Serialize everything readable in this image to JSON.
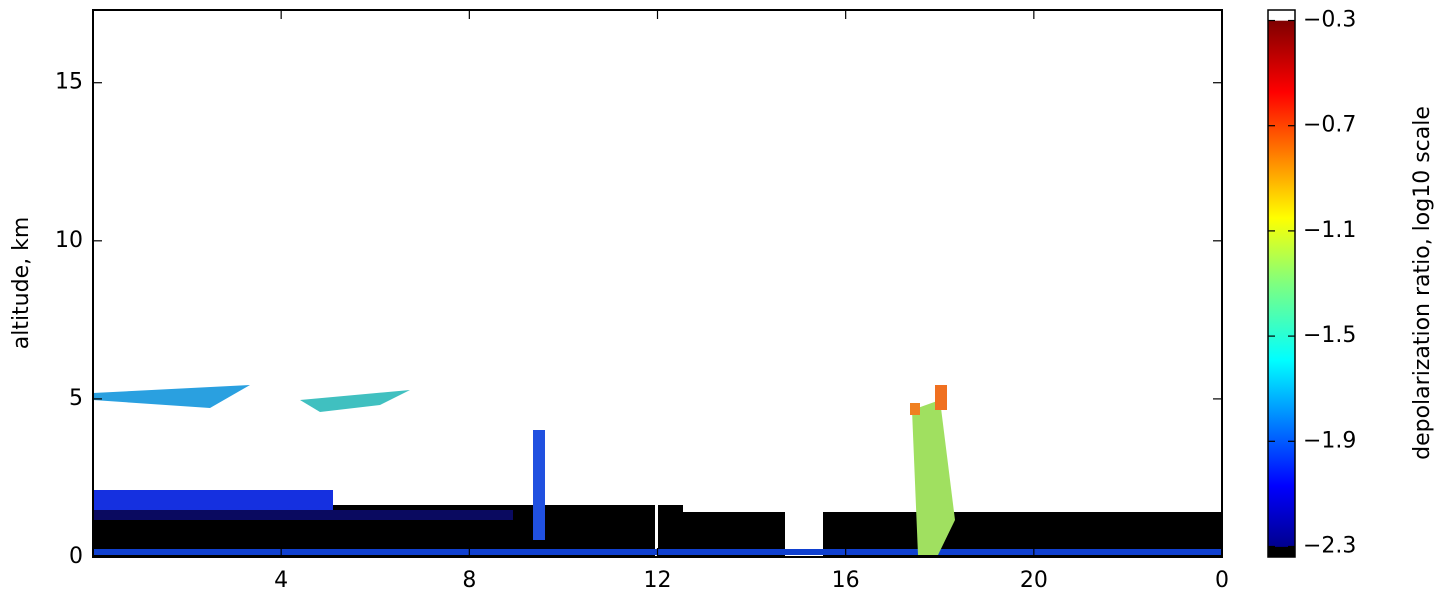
{
  "chart_data": {
    "type": "heatmap",
    "x_label": null,
    "y_label": "altitude, km",
    "xlim": [
      0,
      24
    ],
    "xticks": [
      4,
      8,
      12,
      16,
      20,
      {
        "value": 24,
        "label": "0"
      }
    ],
    "ylim": [
      0,
      17.3
    ],
    "yticks": [
      0,
      5,
      10,
      15
    ],
    "colorbar": {
      "label": "depolarization ratio, log10 scale",
      "lim": [
        -2.34,
        -0.26
      ],
      "ticks": [
        {
          "value": -0.3,
          "label": "−0.3"
        },
        {
          "value": -0.7,
          "label": "−0.7"
        },
        {
          "value": -1.1,
          "label": "−1.1"
        },
        {
          "value": -1.5,
          "label": "−1.5"
        },
        {
          "value": -1.9,
          "label": "−1.9"
        },
        {
          "value": -2.3,
          "label": "−2.3"
        }
      ],
      "colormap": "jet"
    }
  }
}
